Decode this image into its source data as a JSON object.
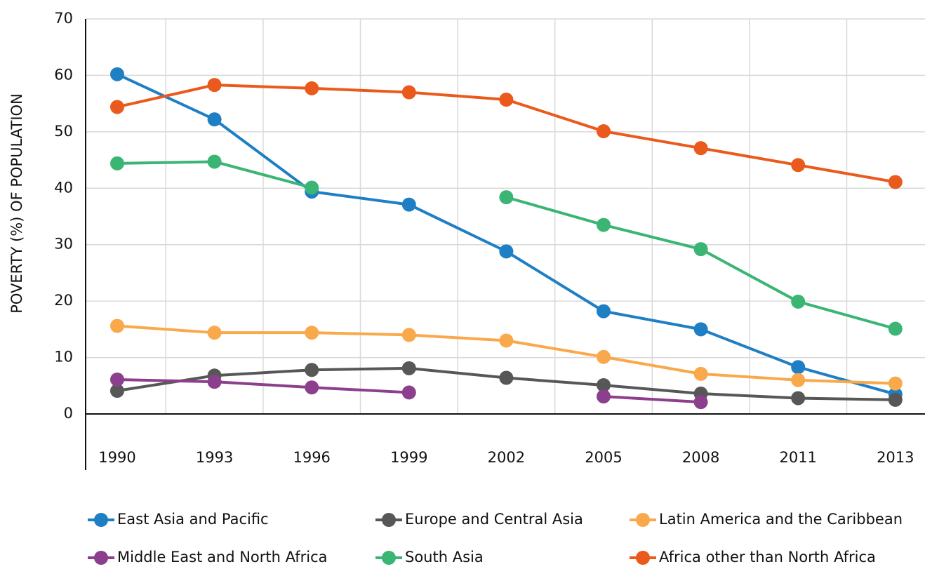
{
  "chart_data": {
    "type": "line",
    "y_label": "POVERTY (%)  OF POPULATION",
    "categories": [
      "1990",
      "1993",
      "1996",
      "1999",
      "2002",
      "2005",
      "2008",
      "2011",
      "2013"
    ],
    "series": [
      {
        "name": "East Asia and Pacific",
        "color": "#1f7fc4",
        "values": [
          60.2,
          52.2,
          39.4,
          37.1,
          28.8,
          18.2,
          15.0,
          8.3,
          3.5
        ]
      },
      {
        "name": "Europe and Central Asia",
        "color": "#575757",
        "values": [
          4.1,
          6.8,
          7.8,
          8.1,
          6.4,
          5.1,
          3.6,
          2.8,
          2.5
        ]
      },
      {
        "name": "Latin America and the Caribbean",
        "color": "#f9a94b",
        "values": [
          15.6,
          14.4,
          14.4,
          14.0,
          13.0,
          10.1,
          7.1,
          6.0,
          5.4
        ]
      },
      {
        "name": "Middle East and North Africa",
        "color": "#8c3f8c",
        "values": [
          6.1,
          5.7,
          4.7,
          3.8,
          null,
          3.1,
          2.1,
          null,
          null
        ]
      },
      {
        "name": "South Asia",
        "color": "#3bb573",
        "values": [
          44.4,
          44.7,
          40.1,
          null,
          38.4,
          33.5,
          29.2,
          19.9,
          15.1
        ]
      },
      {
        "name": "Africa other than North Africa",
        "color": "#ea5a1c",
        "values": [
          54.4,
          58.3,
          57.7,
          57.0,
          55.7,
          50.1,
          47.1,
          44.1,
          41.1
        ]
      }
    ],
    "ylim": [
      0,
      70
    ],
    "yticks": [
      0,
      10,
      20,
      30,
      40,
      50,
      60,
      70
    ],
    "grid": true,
    "legend": "bottom"
  }
}
